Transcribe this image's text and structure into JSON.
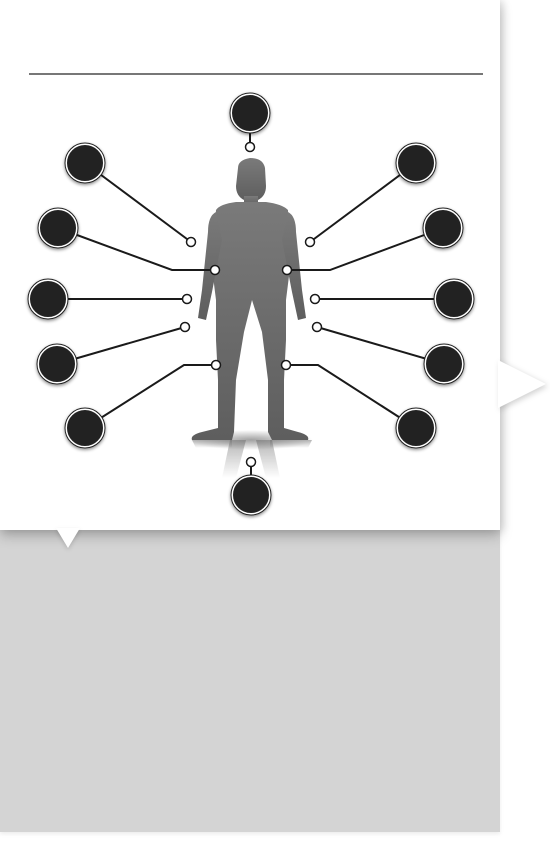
{
  "diagram": {
    "colors": {
      "node_fill": "#222222",
      "node_ring": "#ffffff",
      "connector": "#1a1a1a",
      "silhouette": "#6b6b6b",
      "divider": "#777777",
      "panel": "#d4d4d4"
    },
    "callouts": [
      {
        "id": "top",
        "label": ""
      },
      {
        "id": "left-1",
        "label": ""
      },
      {
        "id": "left-2",
        "label": ""
      },
      {
        "id": "left-3",
        "label": ""
      },
      {
        "id": "left-4",
        "label": ""
      },
      {
        "id": "left-5",
        "label": ""
      },
      {
        "id": "right-1",
        "label": ""
      },
      {
        "id": "right-2",
        "label": ""
      },
      {
        "id": "right-3",
        "label": ""
      },
      {
        "id": "right-4",
        "label": ""
      },
      {
        "id": "right-5",
        "label": ""
      },
      {
        "id": "bottom",
        "label": ""
      }
    ]
  }
}
